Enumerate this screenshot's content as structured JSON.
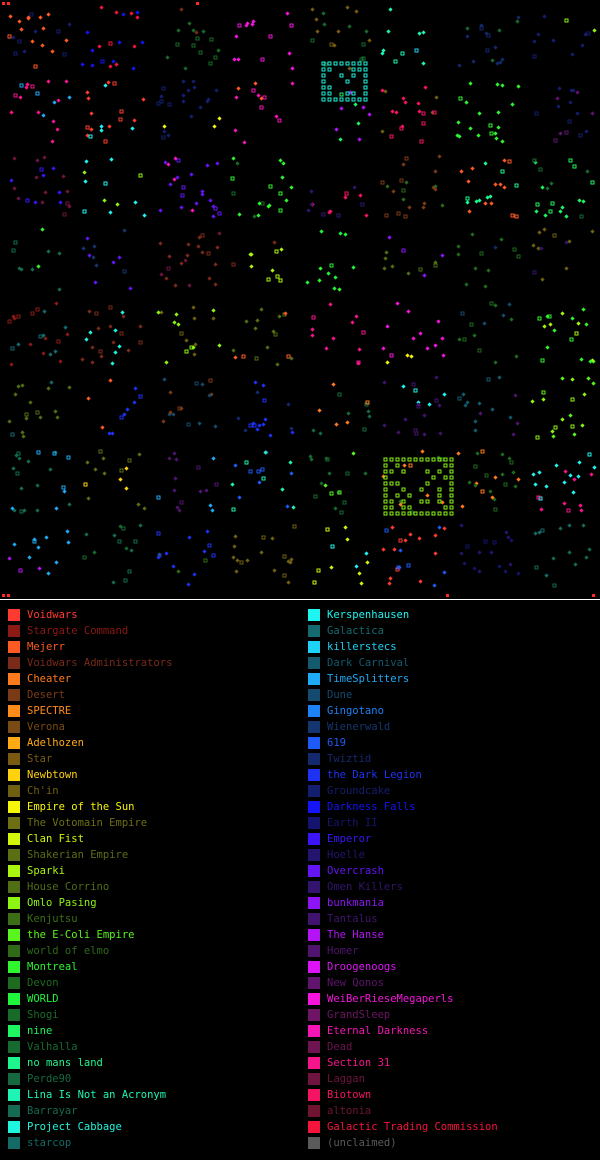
{
  "legend": {
    "left": [
      {
        "label": "Voidwars",
        "color": "#ff3b2f",
        "active": true
      },
      {
        "label": "Stargate Command",
        "color": "#8a1a14",
        "active": false
      },
      {
        "label": "Mejerr",
        "color": "#ff5a24",
        "active": true
      },
      {
        "label": "Voidwars Administrators",
        "color": "#7a2a18",
        "active": false
      },
      {
        "label": "Cheater",
        "color": "#ff7a1c",
        "active": true
      },
      {
        "label": "Desert",
        "color": "#7a3a16",
        "active": false
      },
      {
        "label": "SPECTRE",
        "color": "#ff8c1a",
        "active": true
      },
      {
        "label": "Verona",
        "color": "#7a4a14",
        "active": false
      },
      {
        "label": "Adelhozen",
        "color": "#ffaa14",
        "active": true
      },
      {
        "label": "Star",
        "color": "#7a5a10",
        "active": false
      },
      {
        "label": "Newbtown",
        "color": "#ffd20f",
        "active": true
      },
      {
        "label": "Ch'in",
        "color": "#6e6010",
        "active": false
      },
      {
        "label": "Empire of the Sun",
        "color": "#f5f50a",
        "active": true
      },
      {
        "label": "The Votomain Empire",
        "color": "#6e6e12",
        "active": false
      },
      {
        "label": "Clan Fist",
        "color": "#d2f50a",
        "active": true
      },
      {
        "label": "Shakerian Empire",
        "color": "#5a6e14",
        "active": false
      },
      {
        "label": "Sparki",
        "color": "#aaf50f",
        "active": true
      },
      {
        "label": "House Corrino",
        "color": "#506e14",
        "active": false
      },
      {
        "label": "Omlo Pasing",
        "color": "#8cf514",
        "active": true
      },
      {
        "label": "Kenjutsu",
        "color": "#3c6e16",
        "active": false
      },
      {
        "label": "the E-Coli Empire",
        "color": "#5af51e",
        "active": true
      },
      {
        "label": "world of elmo",
        "color": "#2e6a18",
        "active": false
      },
      {
        "label": "Montreal",
        "color": "#2ef52e",
        "active": true
      },
      {
        "label": "Devon",
        "color": "#1e6a1e",
        "active": false
      },
      {
        "label": "WORLD",
        "color": "#1ef53c",
        "active": true
      },
      {
        "label": "Shogi",
        "color": "#186a28",
        "active": false
      },
      {
        "label": "nine",
        "color": "#1ef560",
        "active": true
      },
      {
        "label": "Valhalla",
        "color": "#166a30",
        "active": false
      },
      {
        "label": "no mans land",
        "color": "#1ef58c",
        "active": true
      },
      {
        "label": "Perde90",
        "color": "#146a3e",
        "active": false
      },
      {
        "label": "Lina Is Not an Acronym",
        "color": "#1ef5b4",
        "active": true
      },
      {
        "label": "Barrayar",
        "color": "#146a52",
        "active": false
      },
      {
        "label": "Project Cabbage",
        "color": "#1ef5dc",
        "active": true
      },
      {
        "label": "starcop",
        "color": "#146a64",
        "active": false
      }
    ],
    "right": [
      {
        "label": "Kerspenhausen",
        "color": "#1ef5f0",
        "active": true
      },
      {
        "label": "Galactica",
        "color": "#146a6e",
        "active": false
      },
      {
        "label": "killerstecs",
        "color": "#1ed2f5",
        "active": true
      },
      {
        "label": "Dark Carnival",
        "color": "#145a6e",
        "active": false
      },
      {
        "label": "TimeSplitters",
        "color": "#1eaaf5",
        "active": true
      },
      {
        "label": "Dune",
        "color": "#144a6e",
        "active": false
      },
      {
        "label": "Gingotano",
        "color": "#1e82f5",
        "active": true
      },
      {
        "label": "Wienerwald",
        "color": "#14366e",
        "active": false
      },
      {
        "label": "619",
        "color": "#1e5af5",
        "active": true
      },
      {
        "label": "Twiztid",
        "color": "#14286e",
        "active": false
      },
      {
        "label": "the Dark Legion",
        "color": "#1e32f5",
        "active": true
      },
      {
        "label": "Groundcake",
        "color": "#141e6e",
        "active": false
      },
      {
        "label": "Darkness Falls",
        "color": "#1414f5",
        "active": true
      },
      {
        "label": "Earth II",
        "color": "#14146e",
        "active": false
      },
      {
        "label": "Emperor",
        "color": "#3c14f5",
        "active": true
      },
      {
        "label": "Hoelle",
        "color": "#24146e",
        "active": false
      },
      {
        "label": "Overcrash",
        "color": "#6414f5",
        "active": true
      },
      {
        "label": "Omen Killers",
        "color": "#32146e",
        "active": false
      },
      {
        "label": "bunkmania",
        "color": "#8c14f5",
        "active": true
      },
      {
        "label": "Tantalus",
        "color": "#40146e",
        "active": false
      },
      {
        "label": "The Hanse",
        "color": "#b414f5",
        "active": true
      },
      {
        "label": "Homer",
        "color": "#50146e",
        "active": false
      },
      {
        "label": "Droogenoogs",
        "color": "#dc14f5",
        "active": true
      },
      {
        "label": "New Qonos",
        "color": "#60146e",
        "active": false
      },
      {
        "label": "WeiBerRieseMegaperls",
        "color": "#f514dc",
        "active": true
      },
      {
        "label": "GrandSleep",
        "color": "#6e1464",
        "active": false
      },
      {
        "label": "Eternal Darkness",
        "color": "#f514b4",
        "active": true
      },
      {
        "label": "Dead",
        "color": "#6e1450",
        "active": false
      },
      {
        "label": "Section 31",
        "color": "#f5148c",
        "active": true
      },
      {
        "label": "Laggan",
        "color": "#6e143e",
        "active": false
      },
      {
        "label": "Biotown",
        "color": "#f51464",
        "active": true
      },
      {
        "label": "altonia",
        "color": "#6e1430",
        "active": false
      },
      {
        "label": "Galactic Trading Commission",
        "color": "#f5143c",
        "active": true
      },
      {
        "label": "(unclaimed)",
        "color": "#5a5a5a",
        "active": false
      }
    ]
  }
}
